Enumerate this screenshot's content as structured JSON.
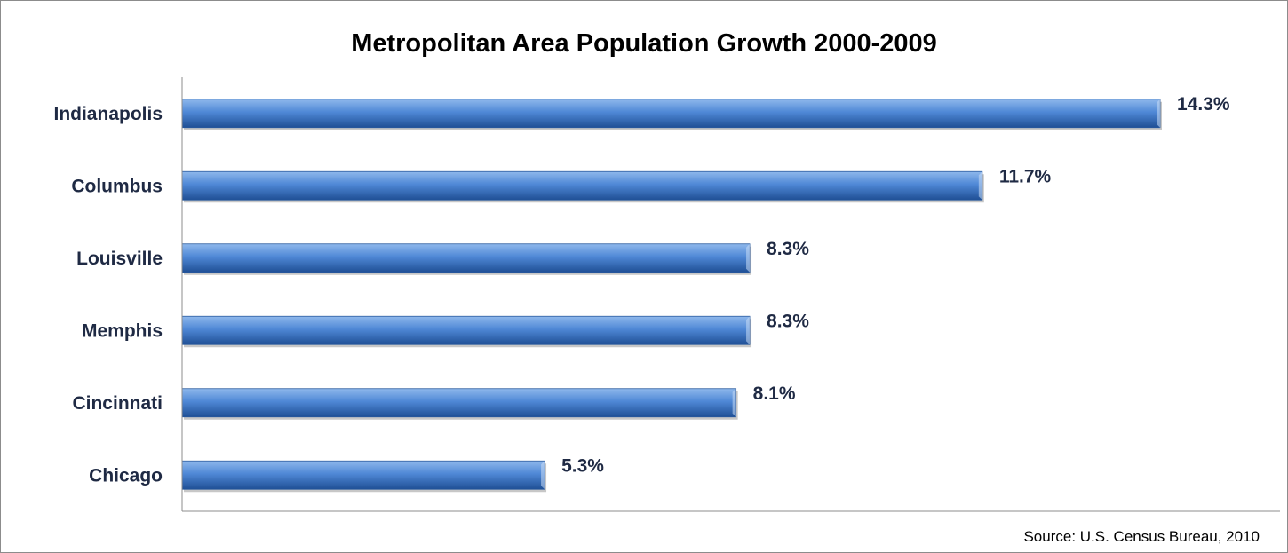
{
  "chart_data": {
    "type": "bar",
    "orientation": "horizontal",
    "title": "Metropolitan Area Population Growth 2000-2009",
    "categories": [
      "Indianapolis",
      "Columbus",
      "Louisville",
      "Memphis",
      "Cincinnati",
      "Chicago"
    ],
    "values": [
      14.3,
      11.7,
      8.3,
      8.3,
      8.1,
      5.3
    ],
    "value_labels": [
      "14.3%",
      "11.7%",
      "8.3%",
      "8.3%",
      "8.1%",
      "5.3%"
    ],
    "unit": "%",
    "xlim": [
      0,
      14.3
    ],
    "grid": false,
    "legend": "none",
    "source": "Source:  U.S. Census Bureau, 2010",
    "colors": {
      "bar_light": "#8fb8ec",
      "bar_mid": "#4f88d6",
      "bar_dark": "#1f4f95",
      "label_text": "#1f2a44"
    }
  }
}
